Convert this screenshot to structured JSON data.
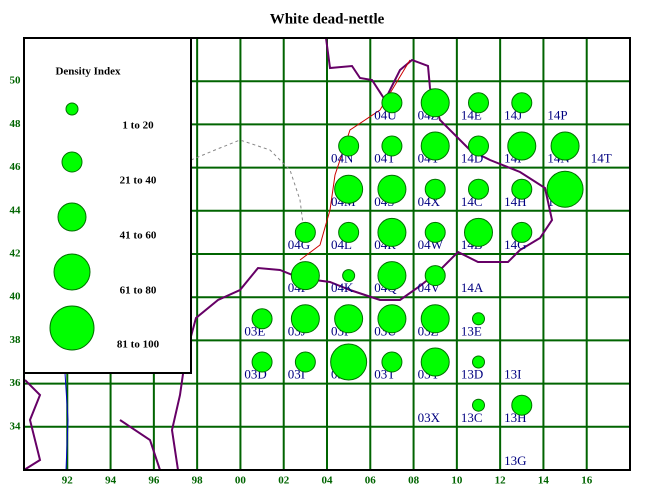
{
  "chart_data": {
    "type": "bubble",
    "title": "White dead-nettle",
    "xlim": [
      90,
      118
    ],
    "ylim": [
      32,
      52
    ],
    "xticks": [
      92,
      94,
      96,
      98,
      {
        "value": 100,
        "label": "00"
      },
      {
        "value": 102,
        "label": "02"
      },
      {
        "value": 104,
        "label": "04"
      },
      {
        "value": 106,
        "label": "06"
      },
      {
        "value": 108,
        "label": "08"
      },
      {
        "value": 110,
        "label": "10"
      },
      {
        "value": 112,
        "label": "12"
      },
      {
        "value": 114,
        "label": "14"
      },
      {
        "value": 116,
        "label": "16"
      }
    ],
    "yticks": [
      34,
      36,
      38,
      40,
      42,
      44,
      46,
      48,
      50
    ],
    "grid": true,
    "color": "#00ff00",
    "legend": {
      "title": "Density Index",
      "labels": [
        "1 to 20",
        "21 to 40",
        "41 to 60",
        "61 to 80",
        "81 to 100"
      ]
    },
    "cells": {
      "labels": [
        "04U",
        "04Z",
        "14E",
        "14J",
        "14P",
        "04N",
        "04T",
        "04Y",
        "14D",
        "14I",
        "14N",
        "14T",
        "04M",
        "04S",
        "04X",
        "14C",
        "14H",
        "14M",
        "04G",
        "04L",
        "04R",
        "04W",
        "14B",
        "14G",
        "04F",
        "04K",
        "04Q",
        "04V",
        "14A",
        "03E",
        "03J",
        "03P",
        "03U",
        "03Z",
        "13E",
        "03D",
        "03I",
        "03N",
        "03T",
        "03Y",
        "13D",
        "13I",
        "03X",
        "13C",
        "13H",
        "13G"
      ],
      "x": [
        106,
        108,
        110,
        112,
        114,
        104,
        106,
        108,
        110,
        112,
        114,
        116,
        104,
        106,
        108,
        110,
        112,
        114,
        102,
        104,
        106,
        108,
        110,
        112,
        102,
        104,
        106,
        108,
        110,
        100,
        102,
        104,
        106,
        108,
        110,
        100,
        102,
        104,
        106,
        108,
        110,
        112,
        108,
        110,
        112,
        112
      ],
      "y": [
        48,
        48,
        48,
        48,
        48,
        46,
        46,
        46,
        46,
        46,
        46,
        46,
        44,
        44,
        44,
        44,
        44,
        44,
        42,
        42,
        42,
        42,
        42,
        42,
        40,
        40,
        40,
        40,
        40,
        38,
        38,
        38,
        38,
        38,
        38,
        36,
        36,
        36,
        36,
        36,
        36,
        36,
        34,
        34,
        34,
        32
      ]
    },
    "x": [
      107,
      109,
      111,
      113,
      105,
      107,
      109,
      111,
      113,
      115,
      105,
      107,
      109,
      111,
      113,
      115,
      103,
      105,
      107,
      109,
      111,
      113,
      103,
      105,
      107,
      109,
      101,
      103,
      105,
      107,
      109,
      111,
      101,
      103,
      105,
      107,
      109,
      111,
      111,
      113
    ],
    "y": [
      49,
      49,
      49,
      49,
      47,
      47,
      47,
      47,
      47,
      47,
      45,
      45,
      45,
      45,
      45,
      45,
      43,
      43,
      43,
      43,
      43,
      43,
      41,
      41,
      41,
      41,
      39,
      39,
      39,
      39,
      39,
      39,
      37,
      37,
      37,
      37,
      37,
      37,
      35,
      35
    ],
    "sizes": [
      30,
      50,
      30,
      30,
      30,
      30,
      50,
      30,
      50,
      50,
      50,
      50,
      30,
      30,
      30,
      70,
      30,
      30,
      50,
      30,
      50,
      30,
      50,
      10,
      50,
      30,
      30,
      50,
      50,
      50,
      50,
      10,
      30,
      30,
      70,
      30,
      50,
      10,
      10,
      30
    ]
  }
}
